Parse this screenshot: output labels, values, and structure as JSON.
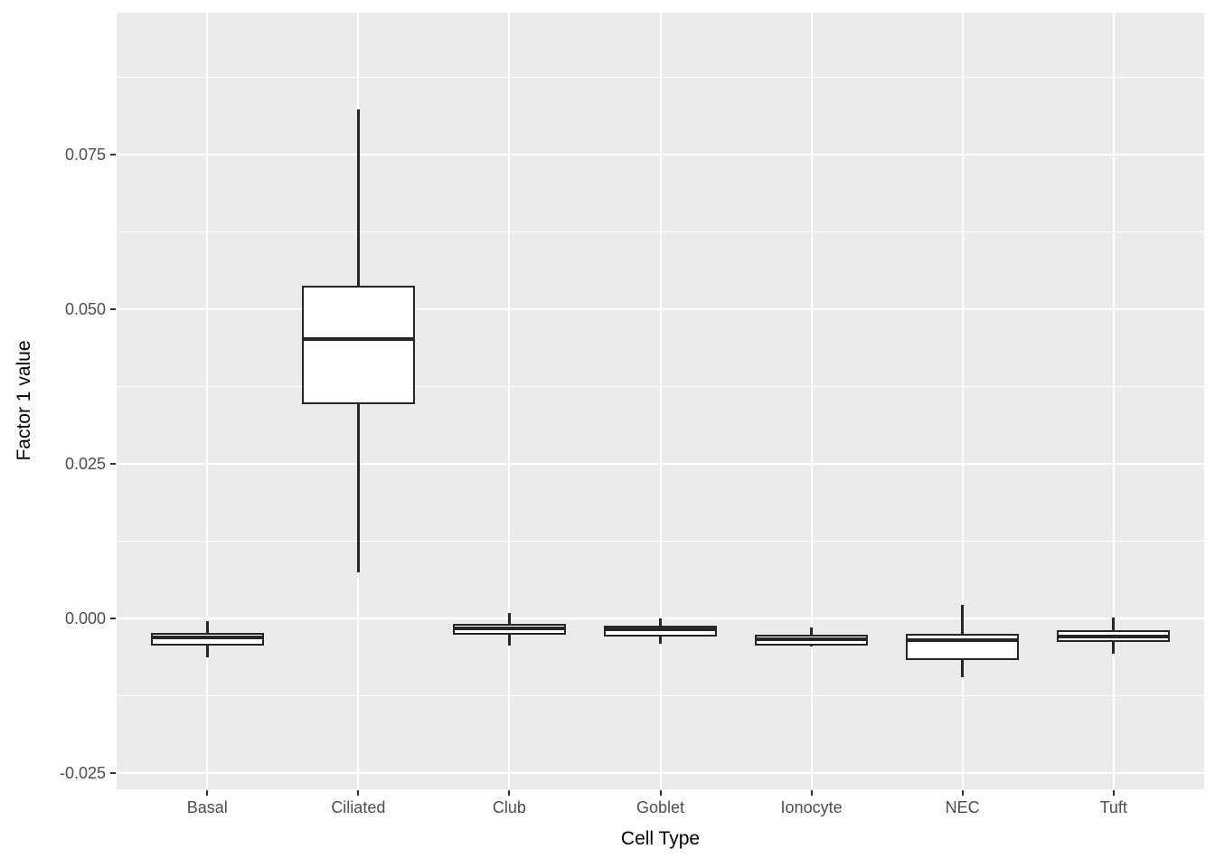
{
  "figure": {
    "background": "#FFFFFF",
    "panel_background": "#EBEBEB",
    "grid_color": "#FFFFFF",
    "box_fill": "#FFFFFF",
    "box_stroke": "#262626",
    "axis_text_color": "#4D4D4D",
    "axis_title_color": "#000000",
    "tick_color": "#333333"
  },
  "chart_data": {
    "type": "boxplot",
    "title": "",
    "xlabel": "Cell Type",
    "ylabel": "Factor 1 value",
    "categories": [
      "Basal",
      "Ciliated",
      "Club",
      "Goblet",
      "Ionocyte",
      "NEC",
      "Tuft"
    ],
    "series": [
      {
        "name": "Basal",
        "min": -0.0062,
        "q1": -0.0043,
        "median": -0.003,
        "q3": -0.0023,
        "max": -0.0004
      },
      {
        "name": "Ciliated",
        "min": 0.0075,
        "q1": 0.0347,
        "median": 0.0452,
        "q3": 0.0538,
        "max": 0.0823
      },
      {
        "name": "Club",
        "min": -0.0043,
        "q1": -0.0026,
        "median": -0.0016,
        "q3": -0.0008,
        "max": 0.0009
      },
      {
        "name": "Goblet",
        "min": -0.0041,
        "q1": -0.0029,
        "median": -0.0017,
        "q3": -0.0012,
        "max": 0.0
      },
      {
        "name": "Ionocyte",
        "min": -0.0045,
        "q1": -0.0043,
        "median": -0.0033,
        "q3": -0.0026,
        "max": -0.0015
      },
      {
        "name": "NEC",
        "min": -0.0094,
        "q1": -0.0067,
        "median": -0.0035,
        "q3": -0.0024,
        "max": 0.0022
      },
      {
        "name": "Tuft",
        "min": -0.0056,
        "q1": -0.0038,
        "median": -0.0029,
        "q3": -0.0019,
        "max": 0.0002
      }
    ],
    "ylim": [
      -0.0276,
      0.098
    ],
    "y_ticks": [
      -0.025,
      0.0,
      0.025,
      0.05,
      0.075
    ],
    "y_tick_labels": [
      "-0.025",
      "0.000",
      "0.025",
      "0.050",
      "0.075"
    ],
    "box_width_fraction": 0.75,
    "grid": "major+minor",
    "legend": "none"
  }
}
